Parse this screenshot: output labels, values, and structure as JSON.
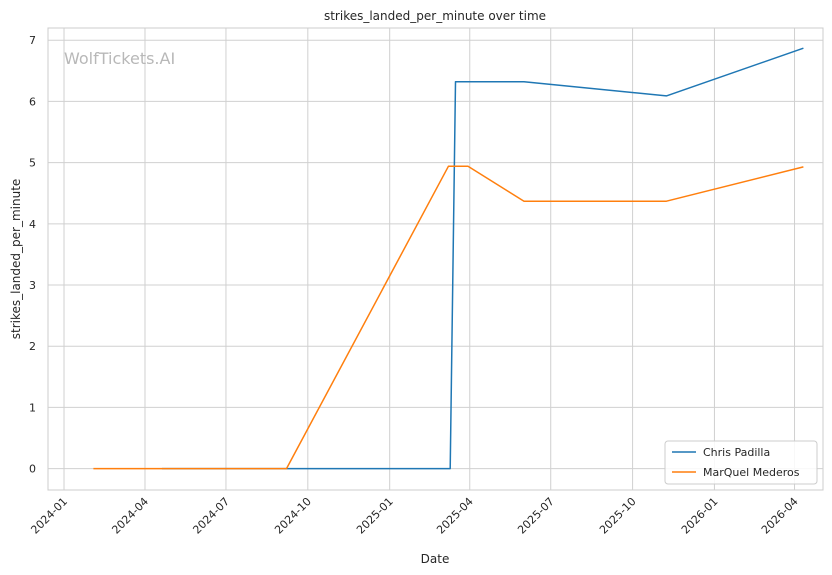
{
  "watermark": "WolfTickets.AI",
  "chart_data": {
    "type": "line",
    "title": "strikes_landed_per_minute over time",
    "xlabel": "Date",
    "ylabel": "strikes_landed_per_minute",
    "x_ticks": [
      "2024-01",
      "2024-04",
      "2024-07",
      "2024-10",
      "2025-01",
      "2025-04",
      "2025-07",
      "2025-10",
      "2026-01",
      "2026-04"
    ],
    "y_ticks": [
      0,
      1,
      2,
      3,
      4,
      5,
      6,
      7
    ],
    "xlim": [
      "2023-12-14",
      "2026-05-03"
    ],
    "ylim": [
      -0.35,
      7.2
    ],
    "grid": true,
    "legend_position": "lower-right",
    "series": [
      {
        "name": "Chris Padilla",
        "color": "#1f77b4",
        "points": [
          {
            "x": "2024-04-20",
            "y": 0
          },
          {
            "x": "2025-03-10",
            "y": 0
          },
          {
            "x": "2025-03-16",
            "y": 6.32
          },
          {
            "x": "2025-06-01",
            "y": 6.32
          },
          {
            "x": "2025-11-08",
            "y": 6.09
          },
          {
            "x": "2026-04-11",
            "y": 6.87
          }
        ]
      },
      {
        "name": "MarQuel Mederos",
        "color": "#ff7f0e",
        "points": [
          {
            "x": "2024-02-03",
            "y": 0
          },
          {
            "x": "2024-09-07",
            "y": 0
          },
          {
            "x": "2025-03-08",
            "y": 4.94
          },
          {
            "x": "2025-03-30",
            "y": 4.94
          },
          {
            "x": "2025-06-01",
            "y": 4.37
          },
          {
            "x": "2025-11-08",
            "y": 4.37
          },
          {
            "x": "2026-04-11",
            "y": 4.93
          }
        ]
      }
    ]
  }
}
